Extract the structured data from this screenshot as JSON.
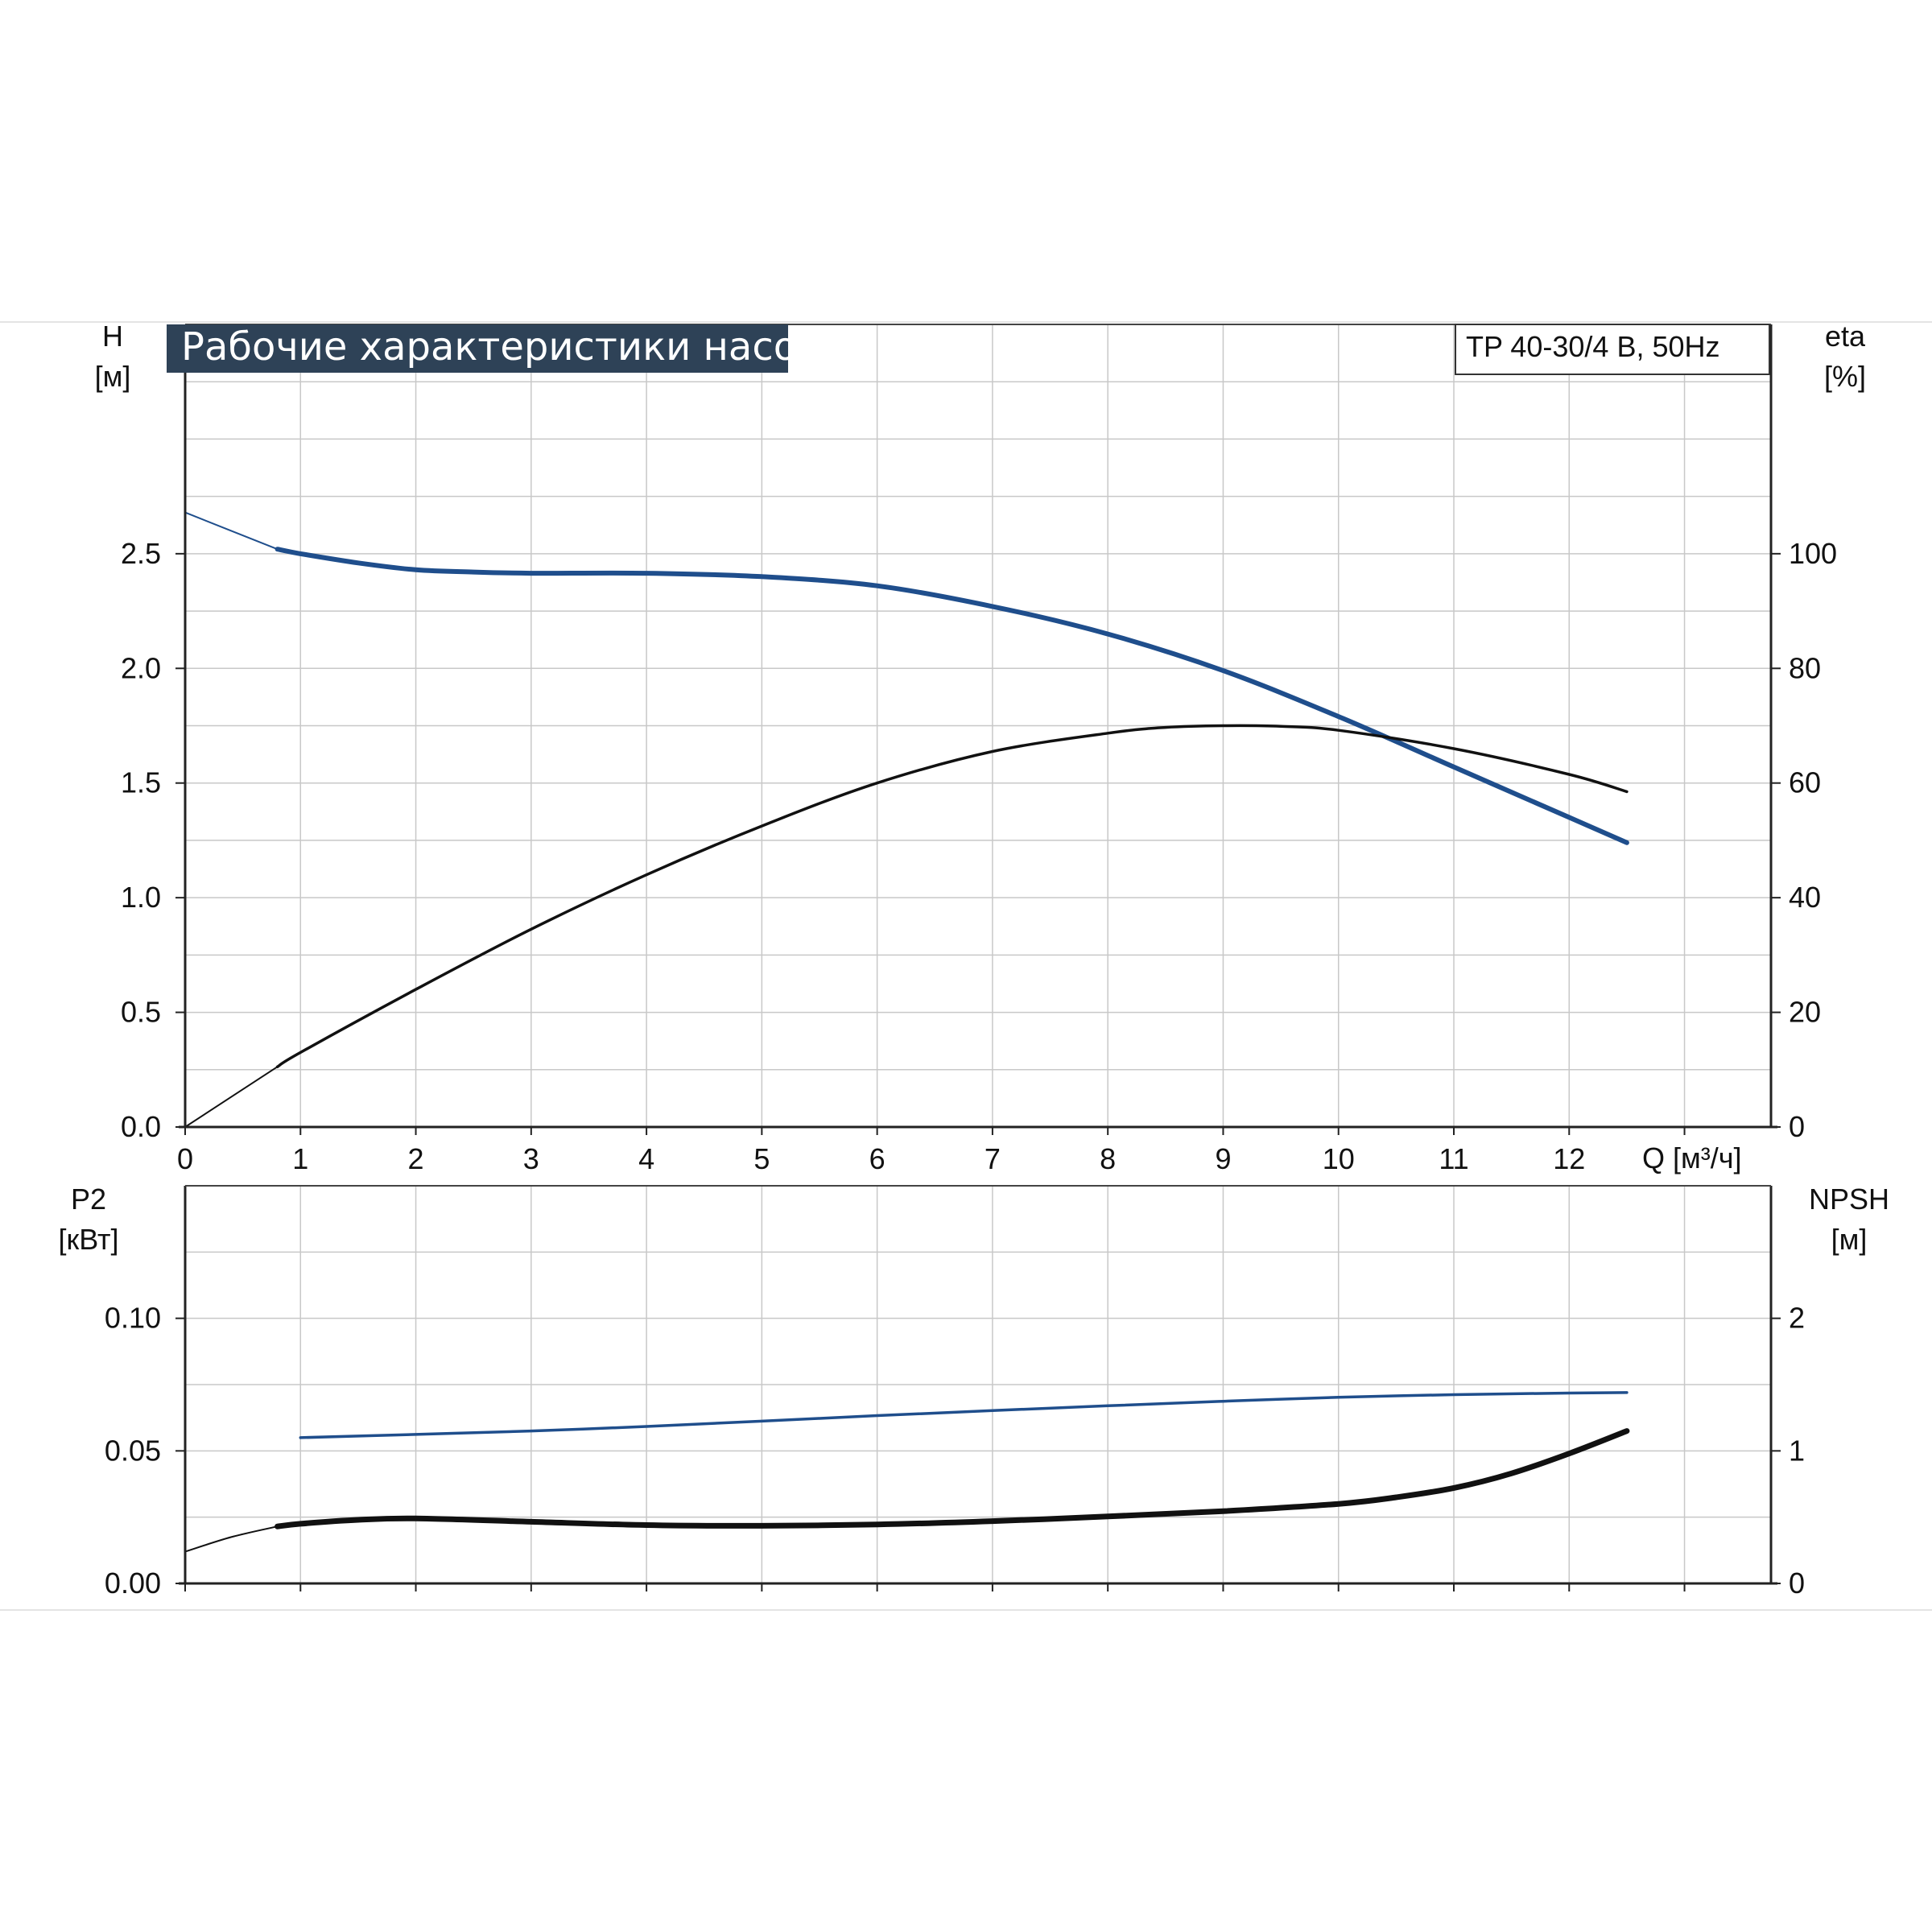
{
  "chart_data": [
    {
      "type": "line",
      "title": "Рабочие характеристики насоса",
      "model_label": "TP 40-30/4 B, 50Hz",
      "xlabel": "Q [м³/ч]",
      "x_ticks": [
        "0",
        "1",
        "2",
        "3",
        "4",
        "5",
        "6",
        "7",
        "8",
        "9",
        "10",
        "11",
        "12"
      ],
      "xlim": [
        0,
        13.75
      ],
      "y_left": {
        "label_line1": "H",
        "label_line2": "[м]",
        "ticks": [
          "0.0",
          "0.5",
          "1.0",
          "1.5",
          "2.0",
          "2.5"
        ],
        "lim": [
          0,
          3.5
        ]
      },
      "y_right": {
        "label_line1": "eta",
        "label_line2": "[%]",
        "ticks": [
          "0",
          "20",
          "40",
          "60",
          "80",
          "100"
        ],
        "lim": [
          0,
          140
        ]
      },
      "grid": true,
      "series": [
        {
          "axis": "left",
          "color": "#1f4e8c",
          "x": [
            0,
            0.8,
            1,
            1.5,
            2,
            2.5,
            3,
            4,
            5,
            6,
            7,
            8,
            9,
            10,
            11,
            12,
            12.5
          ],
          "y": [
            2.68,
            2.52,
            2.5,
            2.46,
            2.43,
            2.42,
            2.415,
            2.415,
            2.4,
            2.36,
            2.27,
            2.15,
            1.99,
            1.79,
            1.57,
            1.35,
            1.24
          ]
        },
        {
          "axis": "right",
          "color": "#111111",
          "x": [
            0,
            0.8,
            1,
            2,
            3,
            4,
            5,
            6,
            7,
            8,
            8.5,
            9,
            9.5,
            10,
            11,
            12,
            12.5
          ],
          "y": [
            0,
            10.5,
            13,
            24,
            34.5,
            44,
            52.5,
            60,
            65.5,
            68.7,
            69.7,
            70,
            69.9,
            69.2,
            66,
            61.5,
            58.5
          ]
        }
      ]
    },
    {
      "type": "line",
      "xlim": [
        0,
        13.75
      ],
      "y_left": {
        "label_line1": "P2",
        "label_line2": "[кВт]",
        "ticks": [
          "0.00",
          "0.05",
          "0.10"
        ],
        "lim": [
          0,
          0.15
        ]
      },
      "y_right": {
        "label_line1": "NPSH",
        "label_line2": "[м]",
        "ticks": [
          "0",
          "1",
          "2"
        ],
        "lim": [
          0,
          3
        ]
      },
      "grid": true,
      "series": [
        {
          "axis": "left",
          "color": "#1f4e8c",
          "x": [
            0,
            1,
            2,
            3,
            4,
            5,
            6,
            7,
            8,
            9,
            10,
            11,
            12,
            12.5
          ],
          "y": [
            0.055,
            0.055,
            0.0562,
            0.0575,
            0.0592,
            0.0612,
            0.0633,
            0.0652,
            0.067,
            0.0687,
            0.0702,
            0.0712,
            0.0718,
            0.072
          ]
        },
        {
          "axis": "right",
          "color": "#111111",
          "x": [
            0,
            0.4,
            0.8,
            1,
            1.5,
            2,
            3,
            4,
            5,
            6,
            7,
            8,
            9,
            10,
            10.5,
            11,
            11.5,
            12,
            12.5
          ],
          "y": [
            0.24,
            0.35,
            0.43,
            0.45,
            0.48,
            0.49,
            0.465,
            0.44,
            0.435,
            0.445,
            0.47,
            0.505,
            0.545,
            0.6,
            0.65,
            0.72,
            0.83,
            0.98,
            1.15
          ]
        }
      ]
    }
  ]
}
